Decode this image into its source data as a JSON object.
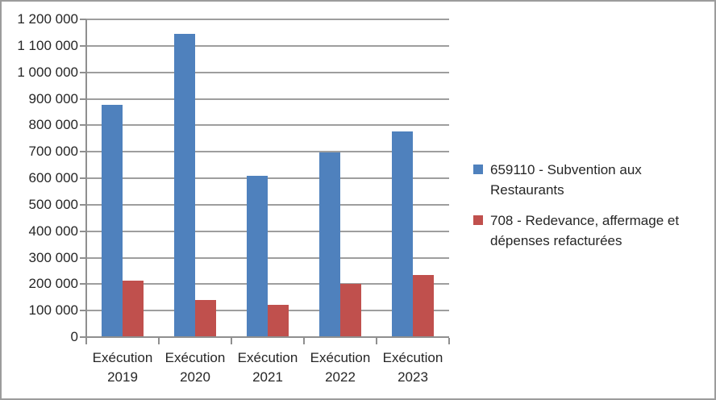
{
  "chart_data": {
    "type": "bar",
    "title": "",
    "grid": true,
    "legend_position": "right",
    "y_axis": {
      "min": 0,
      "max": 1200000,
      "tick_step": 100000,
      "tick_labels": [
        "0",
        "100 000",
        "200 000",
        "300 000",
        "400 000",
        "500 000",
        "600 000",
        "700 000",
        "800 000",
        "900 000",
        "1 000 000",
        "1 100 000",
        "1 200 000"
      ]
    },
    "x_axis": {
      "categories": [
        {
          "line1": "Exécution",
          "line2": "2019"
        },
        {
          "line1": "Exécution",
          "line2": "2020"
        },
        {
          "line1": "Exécution",
          "line2": "2021"
        },
        {
          "line1": "Exécution",
          "line2": "2022"
        },
        {
          "line1": "Exécution",
          "line2": "2023"
        }
      ]
    },
    "series": [
      {
        "id": "subvention",
        "name": "659110 - Subvention aux Restaurants",
        "color": "#4F81BD",
        "values": [
          875000,
          1141000,
          605000,
          694000,
          773000
        ]
      },
      {
        "id": "redevance",
        "name": "708 - Redevance, affermage et dépenses refacturées",
        "color": "#C0504D",
        "values": [
          209000,
          138000,
          118000,
          197000,
          230000
        ]
      }
    ]
  }
}
